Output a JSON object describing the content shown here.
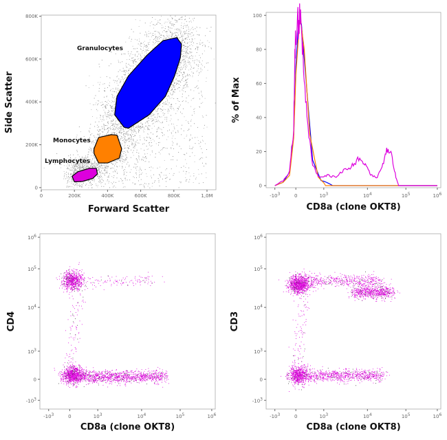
{
  "chart_data": [
    {
      "type": "scatter",
      "xlabel": "Forward Scatter",
      "ylabel": "Side Scatter",
      "xticks": [
        {
          "v": 0,
          "label": "0"
        },
        {
          "v": 200000,
          "label": "200K"
        },
        {
          "v": 400000,
          "label": "400K"
        },
        {
          "v": 600000,
          "label": "600K"
        },
        {
          "v": 800000,
          "label": "800K"
        },
        {
          "v": 1000000,
          "label": "1,0M"
        }
      ],
      "yticks": [
        {
          "v": 0,
          "label": "0"
        },
        {
          "v": 200000,
          "label": "200K"
        },
        {
          "v": 400000,
          "label": "400K"
        },
        {
          "v": 600000,
          "label": "600K"
        },
        {
          "v": 800000,
          "label": "800K"
        }
      ],
      "xlim": [
        0,
        1054000
      ],
      "ylim": [
        -10000,
        805000
      ],
      "event_color": "#808080",
      "gates": [
        {
          "name": "Granulocytes",
          "color": "#0000ff",
          "polygon": [
            [
              499000,
              282000
            ],
            [
              443000,
              340000
            ],
            [
              457000,
              426000
            ],
            [
              526000,
              521000
            ],
            [
              637000,
              617000
            ],
            [
              735000,
              686000
            ],
            [
              818000,
              700000
            ],
            [
              846000,
              670000
            ],
            [
              839000,
              606000
            ],
            [
              804000,
              521000
            ],
            [
              749000,
              426000
            ],
            [
              651000,
              340000
            ],
            [
              526000,
              277000
            ]
          ]
        },
        {
          "name": "Monocytes",
          "color": "#ff8000",
          "polygon": [
            [
              318000,
              181000
            ],
            [
              346000,
              234000
            ],
            [
              422000,
              247000
            ],
            [
              457000,
              245000
            ],
            [
              485000,
              181000
            ],
            [
              471000,
              138000
            ],
            [
              401000,
              115000
            ],
            [
              346000,
              115000
            ],
            [
              318000,
              160000
            ]
          ]
        },
        {
          "name": "Lymphocytes",
          "color": "#dd00dd",
          "polygon": [
            [
              186000,
              53000
            ],
            [
              221000,
              74000
            ],
            [
              290000,
              90000
            ],
            [
              332000,
              90000
            ],
            [
              339000,
              64000
            ],
            [
              311000,
              43000
            ],
            [
              249000,
              29000
            ],
            [
              200000,
              27000
            ]
          ]
        }
      ]
    },
    {
      "type": "line",
      "xlabel": "CD8a (clone OKT8)",
      "ylabel": "% of Max",
      "ylim": [
        0,
        105
      ],
      "xticks": [
        "-10^3",
        "0",
        "10^3",
        "10^4",
        "10^5",
        "10^6"
      ],
      "yticks": [
        0,
        20,
        40,
        60,
        80,
        100
      ],
      "series": [
        {
          "gate": "Granulocytes",
          "color": "#0000ff",
          "points": [
            [
              -1000,
              0
            ],
            [
              -600,
              2
            ],
            [
              -300,
              8
            ],
            [
              -100,
              30
            ],
            [
              0,
              70
            ],
            [
              100,
              96
            ],
            [
              200,
              95
            ],
            [
              400,
              55
            ],
            [
              600,
              15
            ],
            [
              900,
              3
            ],
            [
              1600,
              0
            ],
            [
              1000000,
              0
            ]
          ]
        },
        {
          "gate": "Monocytes",
          "color": "#ff8000",
          "points": [
            [
              -1000,
              0
            ],
            [
              -600,
              2
            ],
            [
              -300,
              6
            ],
            [
              -100,
              28
            ],
            [
              0,
              65
            ],
            [
              150,
              100
            ],
            [
              300,
              80
            ],
            [
              500,
              30
            ],
            [
              800,
              5
            ],
            [
              1100,
              0
            ],
            [
              1000000,
              0
            ]
          ]
        },
        {
          "gate": "Lymphocytes",
          "color": "#dd00dd",
          "points": [
            [
              -1000,
              0
            ],
            [
              -600,
              3
            ],
            [
              -300,
              8
            ],
            [
              -100,
              35
            ],
            [
              -20,
              95
            ],
            [
              60,
              92
            ],
            [
              150,
              100
            ],
            [
              250,
              80
            ],
            [
              400,
              40
            ],
            [
              600,
              12
            ],
            [
              800,
              5
            ],
            [
              1200,
              6
            ],
            [
              1800,
              5
            ],
            [
              2500,
              8
            ],
            [
              3500,
              10
            ],
            [
              5000,
              13
            ],
            [
              7000,
              17
            ],
            [
              9000,
              12
            ],
            [
              12000,
              6
            ],
            [
              18000,
              5
            ],
            [
              25000,
              12
            ],
            [
              33000,
              22
            ],
            [
              42000,
              18
            ],
            [
              55000,
              5
            ],
            [
              65000,
              0
            ],
            [
              1000000,
              0
            ]
          ]
        }
      ]
    },
    {
      "type": "scatter",
      "xlabel": "CD8a (clone OKT8)",
      "ylabel": "CD4",
      "event_color": "#dd00dd",
      "xticks": [
        "-10^3",
        "0",
        "10^3",
        "10^4",
        "10^5",
        "10^6"
      ],
      "yticks": [
        "-10^3",
        "0",
        "10^3",
        "10^4",
        "10^5",
        "10^6"
      ],
      "populations": [
        {
          "x": [
            100,
            100
          ],
          "y": [
            50000,
            50000
          ],
          "events": 700
        },
        {
          "x": [
            100,
            100
          ],
          "y": [
            150,
            150
          ],
          "events": 900
        },
        {
          "x": [
            300,
            40000
          ],
          "y": [
            100,
            100
          ],
          "events": 1200
        },
        {
          "x": [
            300,
            30000
          ],
          "y": [
            50000,
            50000
          ],
          "events": 120
        },
        {
          "x": [
            0,
            300
          ],
          "y": [
            500,
            20000
          ],
          "events": 80
        }
      ]
    },
    {
      "type": "scatter",
      "xlabel": "CD8a (clone OKT8)",
      "ylabel": "CD3",
      "event_color": "#dd00dd",
      "xticks": [
        "-10^3",
        "0",
        "10^3",
        "10^4",
        "10^5",
        "10^6"
      ],
      "yticks": [
        "-10^3",
        "0",
        "10^3",
        "10^4",
        "10^5",
        "10^6"
      ],
      "populations": [
        {
          "x": [
            100,
            100
          ],
          "y": [
            40000,
            40000
          ],
          "events": 1000
        },
        {
          "x": [
            300,
            20000
          ],
          "y": [
            50000,
            50000
          ],
          "events": 500
        },
        {
          "x": [
            5000,
            40000
          ],
          "y": [
            25000,
            25000
          ],
          "events": 700
        },
        {
          "x": [
            100,
            100
          ],
          "y": [
            150,
            150
          ],
          "events": 700
        },
        {
          "x": [
            300,
            25000
          ],
          "y": [
            150,
            150
          ],
          "events": 800
        },
        {
          "x": [
            0,
            300
          ],
          "y": [
            500,
            15000
          ],
          "events": 80
        }
      ]
    }
  ]
}
